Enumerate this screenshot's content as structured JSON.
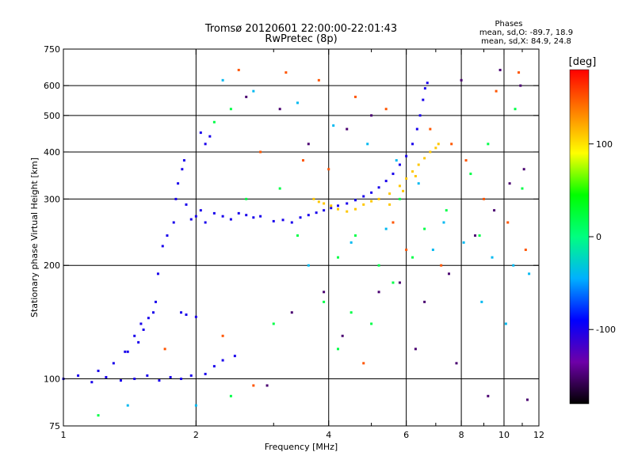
{
  "chart_data": {
    "type": "scatter",
    "title": "Tromsø 20120601 22:00:00-22:01:43",
    "subtitle": "RwPretec (8p)",
    "stats": {
      "heading": "Phases",
      "line1": "mean, sd,O: -89.7, 18.9",
      "line2": "mean, sd,X: 84.9, 24.8"
    },
    "xlabel": "Frequency [MHz]",
    "ylabel": "Stationary phase Virtual Height [km]",
    "x_scale": "log",
    "y_scale": "log",
    "xlim": [
      1,
      12
    ],
    "ylim": [
      75,
      750
    ],
    "x_ticks": [
      {
        "value": 1,
        "label": "1"
      },
      {
        "value": 2,
        "label": "2"
      },
      {
        "value": 4,
        "label": "4"
      },
      {
        "value": 6,
        "label": "6"
      },
      {
        "value": 8,
        "label": "8"
      },
      {
        "value": 10,
        "label": "10"
      },
      {
        "value": 12,
        "label": "12"
      }
    ],
    "x_minor": [
      3,
      5,
      7,
      9,
      11
    ],
    "y_ticks": [
      {
        "value": 75,
        "label": "75"
      },
      {
        "value": 100,
        "label": "100"
      },
      {
        "value": 200,
        "label": "200"
      },
      {
        "value": 300,
        "label": "300"
      },
      {
        "value": 400,
        "label": "400"
      },
      {
        "value": 500,
        "label": "500"
      },
      {
        "value": 600,
        "label": "600"
      },
      {
        "value": 750,
        "label": "750"
      }
    ],
    "grid_x": [
      2,
      4,
      6,
      8,
      10
    ],
    "grid_y": [
      100,
      200,
      300,
      400,
      500,
      600
    ],
    "colorbar": {
      "label": "[deg]",
      "range": [
        -180,
        180
      ],
      "ticks": [
        {
          "value": 100,
          "label": "100"
        },
        {
          "value": 0,
          "label": "0"
        },
        {
          "value": -100,
          "label": "-100"
        }
      ],
      "stops": [
        "#000000",
        "#6e00a8",
        "#0000ff",
        "#00b0ff",
        "#00ff80",
        "#00ff00",
        "#ffff00",
        "#ff8000",
        "#ff0000"
      ]
    },
    "series": [
      {
        "phase": -100,
        "points": [
          [
            1.0,
            100
          ],
          [
            1.08,
            102
          ],
          [
            1.16,
            98
          ],
          [
            1.25,
            101
          ],
          [
            1.35,
            99
          ],
          [
            1.45,
            100
          ],
          [
            1.55,
            102
          ],
          [
            1.65,
            99
          ],
          [
            1.75,
            101
          ],
          [
            1.85,
            100
          ],
          [
            1.95,
            102
          ],
          [
            2.1,
            103
          ],
          [
            2.2,
            108
          ],
          [
            2.3,
            112
          ],
          [
            2.45,
            115
          ],
          [
            1.2,
            105
          ],
          [
            1.3,
            110
          ],
          [
            1.4,
            118
          ],
          [
            1.48,
            125
          ],
          [
            1.52,
            135
          ],
          [
            1.56,
            145
          ],
          [
            1.6,
            150
          ],
          [
            1.5,
            140
          ],
          [
            1.45,
            130
          ],
          [
            1.38,
            118
          ],
          [
            1.62,
            160
          ],
          [
            1.64,
            190
          ],
          [
            1.68,
            225
          ],
          [
            1.72,
            240
          ],
          [
            1.78,
            260
          ],
          [
            1.8,
            300
          ],
          [
            1.82,
            330
          ],
          [
            1.86,
            360
          ],
          [
            1.88,
            380
          ],
          [
            1.9,
            290
          ],
          [
            1.95,
            265
          ],
          [
            2.0,
            270
          ],
          [
            2.05,
            280
          ],
          [
            2.1,
            260
          ],
          [
            2.2,
            275
          ],
          [
            2.3,
            270
          ],
          [
            2.4,
            265
          ],
          [
            2.5,
            275
          ],
          [
            2.6,
            272
          ],
          [
            2.7,
            268
          ],
          [
            2.8,
            270
          ],
          [
            2.1,
            420
          ],
          [
            2.15,
            440
          ],
          [
            2.05,
            450
          ],
          [
            1.85,
            150
          ],
          [
            1.9,
            148
          ],
          [
            2.0,
            146
          ],
          [
            3.0,
            262
          ],
          [
            3.15,
            264
          ],
          [
            3.3,
            260
          ],
          [
            3.45,
            268
          ],
          [
            3.6,
            272
          ],
          [
            3.75,
            276
          ],
          [
            3.9,
            280
          ],
          [
            4.05,
            284
          ],
          [
            4.2,
            288
          ],
          [
            4.4,
            292
          ],
          [
            4.6,
            298
          ],
          [
            4.8,
            305
          ],
          [
            5.0,
            312
          ],
          [
            5.2,
            322
          ],
          [
            5.4,
            335
          ],
          [
            5.6,
            350
          ],
          [
            5.8,
            370
          ],
          [
            6.0,
            390
          ],
          [
            6.2,
            420
          ],
          [
            6.35,
            460
          ],
          [
            6.45,
            500
          ],
          [
            6.55,
            550
          ],
          [
            6.62,
            590
          ],
          [
            6.7,
            610
          ]
        ]
      },
      {
        "phase": 110,
        "points": [
          [
            3.7,
            300
          ],
          [
            3.8,
            295
          ],
          [
            3.9,
            292
          ],
          [
            4.05,
            288
          ],
          [
            4.2,
            282
          ],
          [
            4.4,
            278
          ],
          [
            4.6,
            282
          ],
          [
            4.8,
            290
          ],
          [
            5.0,
            296
          ],
          [
            5.2,
            300
          ],
          [
            5.5,
            310
          ],
          [
            5.8,
            325
          ],
          [
            6.0,
            340
          ],
          [
            6.2,
            355
          ],
          [
            6.4,
            370
          ],
          [
            6.6,
            385
          ],
          [
            6.8,
            400
          ],
          [
            7.0,
            410
          ],
          [
            7.1,
            420
          ],
          [
            5.5,
            290
          ],
          [
            5.9,
            315
          ],
          [
            6.3,
            345
          ]
        ]
      },
      {
        "phase": 20,
        "points": [
          [
            2.2,
            480
          ],
          [
            2.4,
            520
          ],
          [
            2.6,
            300
          ],
          [
            3.1,
            320
          ],
          [
            3.4,
            240
          ],
          [
            4.2,
            210
          ],
          [
            4.6,
            240
          ],
          [
            5.2,
            200
          ],
          [
            5.6,
            180
          ],
          [
            6.2,
            210
          ],
          [
            6.6,
            250
          ],
          [
            7.4,
            280
          ],
          [
            8.4,
            350
          ],
          [
            9.2,
            420
          ],
          [
            10.6,
            520
          ],
          [
            11.0,
            320
          ],
          [
            3.9,
            160
          ],
          [
            4.5,
            150
          ],
          [
            5.0,
            140
          ],
          [
            4.2,
            120
          ],
          [
            1.2,
            80
          ],
          [
            2.4,
            90
          ],
          [
            3.0,
            140
          ],
          [
            5.8,
            300
          ],
          [
            8.8,
            240
          ]
        ]
      },
      {
        "phase": 150,
        "points": [
          [
            2.5,
            660
          ],
          [
            3.2,
            650
          ],
          [
            3.8,
            620
          ],
          [
            4.6,
            560
          ],
          [
            5.4,
            520
          ],
          [
            6.8,
            460
          ],
          [
            7.6,
            420
          ],
          [
            8.2,
            380
          ],
          [
            9.0,
            300
          ],
          [
            10.2,
            260
          ],
          [
            11.2,
            220
          ],
          [
            2.8,
            400
          ],
          [
            3.5,
            380
          ],
          [
            4.0,
            360
          ],
          [
            5.6,
            260
          ],
          [
            6.0,
            220
          ],
          [
            7.2,
            200
          ],
          [
            10.8,
            650
          ],
          [
            9.6,
            580
          ],
          [
            1.7,
            120
          ],
          [
            2.3,
            130
          ],
          [
            2.7,
            96
          ],
          [
            4.8,
            110
          ]
        ]
      },
      {
        "phase": -150,
        "points": [
          [
            2.9,
            96
          ],
          [
            3.3,
            150
          ],
          [
            3.9,
            170
          ],
          [
            4.3,
            130
          ],
          [
            5.2,
            170
          ],
          [
            5.8,
            180
          ],
          [
            6.6,
            160
          ],
          [
            7.5,
            190
          ],
          [
            8.6,
            240
          ],
          [
            9.5,
            280
          ],
          [
            10.3,
            330
          ],
          [
            11.1,
            360
          ],
          [
            3.6,
            420
          ],
          [
            4.4,
            460
          ],
          [
            5.0,
            500
          ],
          [
            8.0,
            620
          ],
          [
            9.8,
            660
          ],
          [
            10.9,
            600
          ],
          [
            2.6,
            560
          ],
          [
            3.1,
            520
          ],
          [
            6.3,
            120
          ],
          [
            7.8,
            110
          ],
          [
            9.2,
            90
          ],
          [
            11.3,
            88
          ]
        ]
      },
      {
        "phase": -40,
        "points": [
          [
            2.3,
            620
          ],
          [
            2.7,
            580
          ],
          [
            3.4,
            540
          ],
          [
            4.1,
            470
          ],
          [
            4.9,
            420
          ],
          [
            5.7,
            380
          ],
          [
            6.4,
            330
          ],
          [
            7.3,
            260
          ],
          [
            8.1,
            230
          ],
          [
            9.4,
            210
          ],
          [
            10.5,
            200
          ],
          [
            11.4,
            190
          ],
          [
            1.4,
            85
          ],
          [
            2.0,
            85
          ],
          [
            3.6,
            200
          ],
          [
            4.5,
            230
          ],
          [
            5.4,
            250
          ],
          [
            6.9,
            220
          ],
          [
            8.9,
            160
          ],
          [
            10.1,
            140
          ]
        ]
      }
    ]
  }
}
